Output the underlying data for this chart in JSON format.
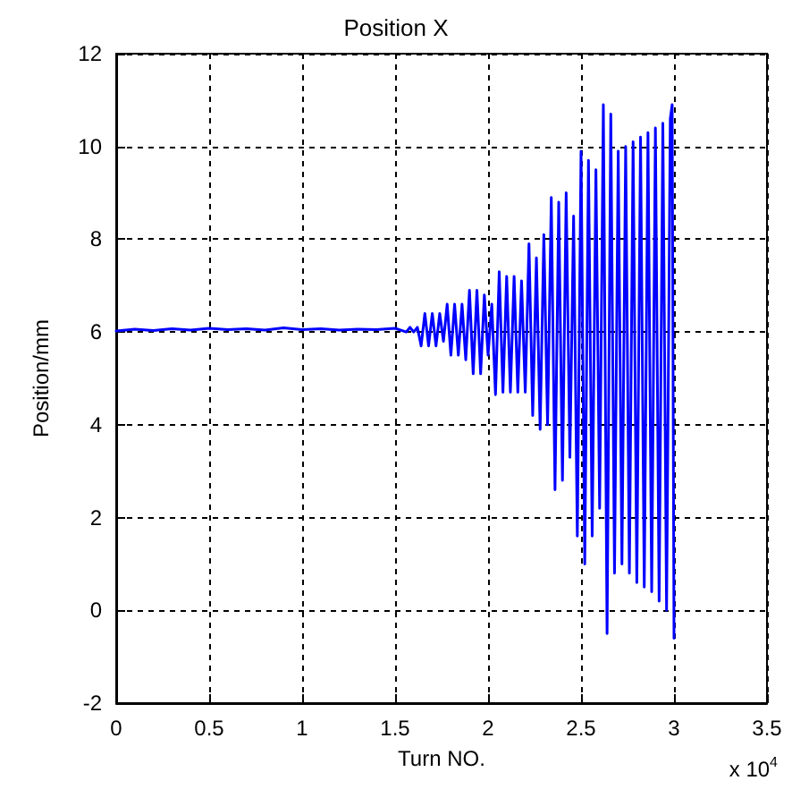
{
  "chart_data": {
    "type": "line",
    "title": "Position X",
    "xlabel": "Turn NO.",
    "ylabel": "Position/mm",
    "annotations": [
      "x 10$^{4}$"
    ],
    "xlim": [
      0,
      3.5
    ],
    "xticks": [
      0,
      0.5,
      1,
      1.5,
      2,
      2.5,
      3,
      3.5
    ],
    "ylim": [
      -2,
      12
    ],
    "yticks": [
      -2,
      0,
      2,
      4,
      6,
      8,
      10,
      12
    ],
    "grid": true,
    "marker": "none",
    "line_style": "solid",
    "series": [
      {
        "color": "#0000ff",
        "x": [
          0,
          0.1,
          0.2,
          0.3,
          0.4,
          0.5,
          0.6,
          0.7,
          0.8,
          0.9,
          1.0,
          1.1,
          1.2,
          1.3,
          1.4,
          1.5,
          1.56,
          1.58,
          1.6,
          1.62,
          1.64,
          1.66,
          1.68,
          1.7,
          1.72,
          1.74,
          1.76,
          1.78,
          1.8,
          1.82,
          1.84,
          1.86,
          1.88,
          1.9,
          1.92,
          1.94,
          1.96,
          1.98,
          2.0,
          2.02,
          2.04,
          2.06,
          2.08,
          2.1,
          2.12,
          2.14,
          2.16,
          2.18,
          2.2,
          2.22,
          2.24,
          2.26,
          2.28,
          2.3,
          2.32,
          2.34,
          2.36,
          2.38,
          2.4,
          2.42,
          2.44,
          2.46,
          2.48,
          2.5,
          2.52,
          2.54,
          2.56,
          2.58,
          2.6,
          2.62,
          2.64,
          2.66,
          2.68,
          2.7,
          2.72,
          2.74,
          2.76,
          2.78,
          2.8,
          2.82,
          2.84,
          2.86,
          2.88,
          2.9,
          2.92,
          2.94,
          2.96,
          2.98,
          2.99,
          3.0
        ],
        "values": [
          6.02,
          6.06,
          6.03,
          6.07,
          6.04,
          6.08,
          6.05,
          6.07,
          6.04,
          6.09,
          6.05,
          6.07,
          6.04,
          6.06,
          6.05,
          6.08,
          6.0,
          6.1,
          6.0,
          6.1,
          5.7,
          6.4,
          5.7,
          6.4,
          5.7,
          6.4,
          5.8,
          6.6,
          5.5,
          6.6,
          5.5,
          6.6,
          5.4,
          6.9,
          5.1,
          6.9,
          5.1,
          6.8,
          5.5,
          6.6,
          4.65,
          7.3,
          4.7,
          7.2,
          4.7,
          7.2,
          4.7,
          7.1,
          4.7,
          7.9,
          4.2,
          7.6,
          3.9,
          8.1,
          4.0,
          8.9,
          2.6,
          8.8,
          2.8,
          9.0,
          3.3,
          8.5,
          1.6,
          9.9,
          1.0,
          9.7,
          1.6,
          9.5,
          2.2,
          10.9,
          -0.5,
          10.7,
          0.8,
          9.9,
          1.0,
          10.0,
          0.8,
          10.1,
          0.6,
          10.2,
          0.5,
          10.3,
          0.4,
          10.4,
          0.2,
          10.5,
          0.0,
          10.6,
          10.9,
          -0.6
        ]
      }
    ]
  }
}
